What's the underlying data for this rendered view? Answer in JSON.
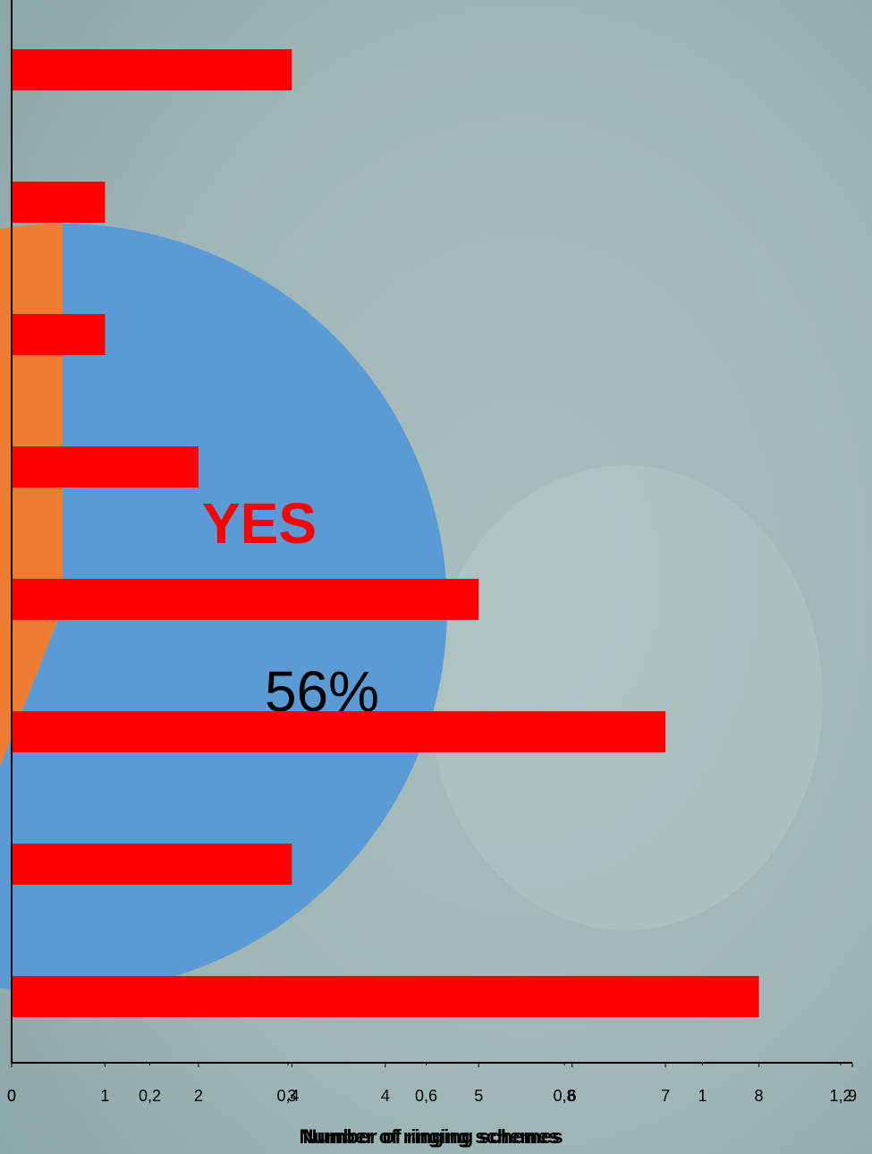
{
  "chart_data": [
    {
      "type": "bar",
      "orientation": "horizontal",
      "categories": [
        null,
        null,
        null,
        null,
        null,
        null,
        null,
        null
      ],
      "values": [
        3,
        1,
        1,
        2,
        5,
        7,
        3,
        8
      ],
      "color": "#ff0000",
      "xlim": [
        0,
        9
      ],
      "xticks": [
        0,
        1,
        2,
        3,
        4,
        5,
        6,
        7,
        8,
        9
      ],
      "xlabel": "Number of ringing schemes",
      "x2lim": [
        0,
        1.2
      ],
      "x2ticks": [
        0,
        {
          "value": 0.2,
          "label": "0,2"
        },
        {
          "value": 0.4,
          "label": "0,4"
        },
        {
          "value": 0.6,
          "label": "0,6"
        },
        {
          "value": 0.8,
          "label": "0,8"
        },
        1,
        {
          "value": 1.2,
          "label": "1,2"
        }
      ],
      "x2label": "Number of ringing schemes"
    },
    {
      "type": "pie",
      "labels": [
        "YES",
        null
      ],
      "values": [
        56,
        44
      ],
      "value_labels": [
        "56%",
        null
      ],
      "colors": [
        "#5b9bd5",
        "#ed7d31"
      ]
    }
  ]
}
